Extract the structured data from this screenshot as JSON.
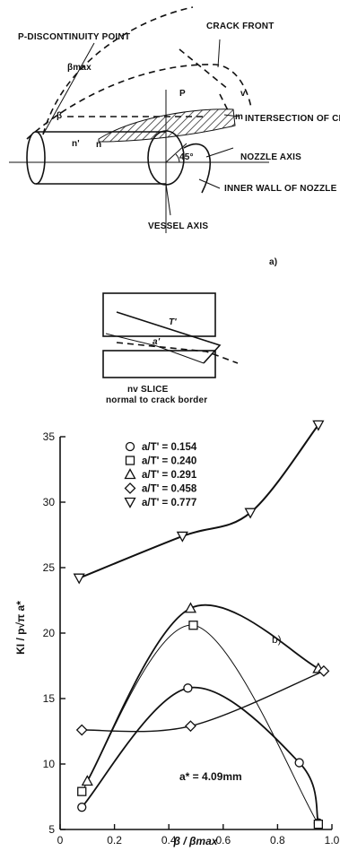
{
  "diagram_a": {
    "labels": {
      "p_point": "P-DISCONTINUITY POINT",
      "beta_max": "βmax",
      "crack_front": "CRACK FRONT",
      "p": "P",
      "v": "v",
      "m": "m",
      "beta": "β",
      "n_prime": "n'",
      "n": "n",
      "intersection": "INTERSECTION OF CRACK AND VESSEL SURFACE",
      "angle45": "45°",
      "nozzle_axis": "NOZZLE AXIS",
      "inner_wall": "INNER WALL OF NOZZLE",
      "vessel_axis": "VESSEL AXIS"
    },
    "panel_label": "a)"
  },
  "slice": {
    "t_label": "T'",
    "a_label": "a'",
    "caption_1": "nv SLICE",
    "caption_2": "normal to crack border"
  },
  "chart_data": {
    "type": "line",
    "panel_label": "b)",
    "xlabel": "β / βmax",
    "ylabel": "KI / p√π a*",
    "annotation": "a* = 4.09mm",
    "xlim": [
      0,
      1.0
    ],
    "ylim": [
      5,
      35
    ],
    "xticks": [
      "0",
      "0.2",
      "0.4",
      "0.6",
      "0.8",
      "1.0"
    ],
    "yticks": [
      "5",
      "10",
      "15",
      "20",
      "25",
      "30",
      "35"
    ],
    "series": [
      {
        "name": "a/T' = 0.154",
        "marker": "circle",
        "points": [
          [
            0.08,
            6.7
          ],
          [
            0.47,
            15.8
          ],
          [
            0.88,
            10.1
          ],
          [
            0.95,
            5.5
          ]
        ]
      },
      {
        "name": "a/T' = 0.240",
        "marker": "square",
        "points": [
          [
            0.08,
            7.9
          ],
          [
            0.49,
            20.6
          ],
          [
            0.95,
            5.4
          ]
        ]
      },
      {
        "name": "a/T' = 0.291",
        "marker": "triangle-up",
        "points": [
          [
            0.1,
            8.7
          ],
          [
            0.48,
            21.9
          ],
          [
            0.95,
            17.3
          ]
        ]
      },
      {
        "name": "a/T' = 0.458",
        "marker": "diamond",
        "points": [
          [
            0.08,
            12.6
          ],
          [
            0.48,
            12.9
          ],
          [
            0.97,
            17.1
          ]
        ]
      },
      {
        "name": "a/T' = 0.777",
        "marker": "triangle-down",
        "points": [
          [
            0.07,
            24.2
          ],
          [
            0.45,
            27.4
          ],
          [
            0.7,
            29.2
          ],
          [
            0.95,
            35.9
          ]
        ]
      }
    ]
  }
}
